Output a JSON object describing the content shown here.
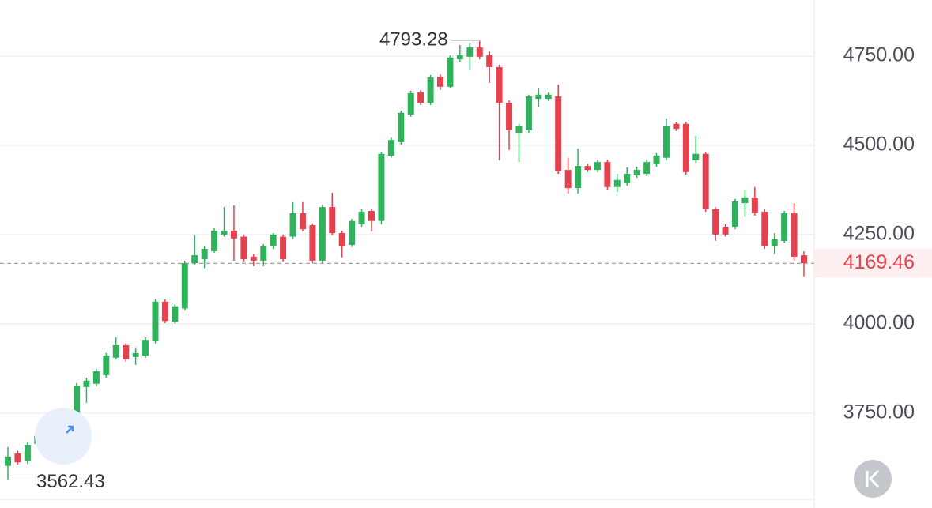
{
  "chart_data": {
    "type": "candlestick",
    "open": [
      3602,
      3637,
      3615,
      3664,
      3679,
      3690,
      3653,
      3701,
      3823,
      3832,
      3856,
      3905,
      3940,
      3907,
      3911,
      3951,
      4062,
      4006,
      4043,
      4170,
      4181,
      4203,
      4250,
      4261,
      4244,
      4188,
      4177,
      4217,
      4244,
      4244,
      4310,
      4276,
      4177,
      4327,
      4254,
      4221,
      4279,
      4316,
      4288,
      4471,
      4509,
      4586,
      4648,
      4619,
      4692,
      4664,
      4741,
      4748,
      4774,
      4752,
      4719,
      4619,
      4535,
      4542,
      4630,
      4630,
      4637,
      4431,
      4380,
      4442,
      4431,
      4453,
      4383,
      4394,
      4416,
      4420,
      4447,
      4465,
      4560,
      4560,
      4458,
      4476,
      4321,
      4272,
      4272,
      4338,
      4354,
      4314,
      4217,
      4232,
      4310,
      4192
    ],
    "high": [
      3655,
      3644,
      3668,
      3692,
      3686,
      3712,
      3708,
      3834,
      3849,
      3874,
      3918,
      3962,
      3945,
      3934,
      3962,
      4068,
      4068,
      4055,
      4177,
      4248,
      4217,
      4268,
      4327,
      4332,
      4250,
      4195,
      4223,
      4254,
      4250,
      4341,
      4341,
      4281,
      4334,
      4367,
      4261,
      4294,
      4321,
      4323,
      4482,
      4522,
      4597,
      4653,
      4655,
      4697,
      4699,
      4752,
      4781,
      4785,
      4793.28,
      4763,
      4726,
      4626,
      4560,
      4642,
      4659,
      4648,
      4670,
      4465,
      4491,
      4449,
      4460,
      4460,
      4420,
      4438,
      4440,
      4460,
      4478,
      4575,
      4566,
      4566,
      4526,
      4482,
      4327,
      4279,
      4350,
      4376,
      4383,
      4321,
      4254,
      4316,
      4338,
      4203
    ],
    "low": [
      3562.43,
      3606,
      3608,
      3657,
      3648,
      3657,
      3646,
      3695,
      3779,
      3825,
      3849,
      3900,
      3894,
      3885,
      3905,
      3945,
      4002,
      4000,
      4037,
      4166,
      4156,
      4199,
      4244,
      4177,
      4175,
      4161,
      4161,
      4210,
      4175,
      4237,
      4259,
      4170,
      4170,
      4248,
      4186,
      4215,
      4272,
      4259,
      4279,
      4465,
      4502,
      4580,
      4613,
      4613,
      4655,
      4659,
      4734,
      4712,
      4741,
      4675,
      4458,
      4487,
      4453,
      4535,
      4608,
      4624,
      4420,
      4365,
      4365,
      4425,
      4425,
      4376,
      4369,
      4387,
      4409,
      4414,
      4440,
      4458,
      4540,
      4418,
      4451,
      4314,
      4232,
      4244,
      4265,
      4299,
      4303,
      4210,
      4195,
      4226,
      4177,
      4133
    ],
    "close": [
      3628,
      3612,
      3661,
      3686,
      3655,
      3664,
      3701,
      3827,
      3841,
      3867,
      3911,
      3940,
      3900,
      3918,
      3955,
      4062,
      4008,
      4049,
      4170,
      4192,
      4210,
      4261,
      4261,
      4239,
      4181,
      4177,
      4217,
      4250,
      4181,
      4310,
      4265,
      4177,
      4327,
      4254,
      4217,
      4288,
      4314,
      4288,
      4476,
      4515,
      4591,
      4646,
      4619,
      4690,
      4664,
      4746,
      4752,
      4774,
      4748,
      4719,
      4619,
      4542,
      4553,
      4637,
      4642,
      4642,
      4427,
      4380,
      4442,
      4431,
      4453,
      4383,
      4403,
      4420,
      4431,
      4453,
      4471,
      4553,
      4546,
      4425,
      4476,
      4321,
      4250,
      4250,
      4343,
      4354,
      4310,
      4217,
      4237,
      4310,
      4188,
      4169.46
    ],
    "up_color": "#2fb25b",
    "down_color": "#e5414f",
    "ylim": [
      3484,
      4907
    ],
    "yticks": [
      {
        "value": 4750,
        "label": "4750.00"
      },
      {
        "value": 4500,
        "label": "4500.00"
      },
      {
        "value": 4250,
        "label": "4250.00"
      },
      {
        "value": 4000,
        "label": "4000.00"
      },
      {
        "value": 3750,
        "label": "3750.00"
      }
    ],
    "grid": true,
    "max_label": 4793.28,
    "min_label": 3562.43,
    "last_price": 4169.46
  }
}
